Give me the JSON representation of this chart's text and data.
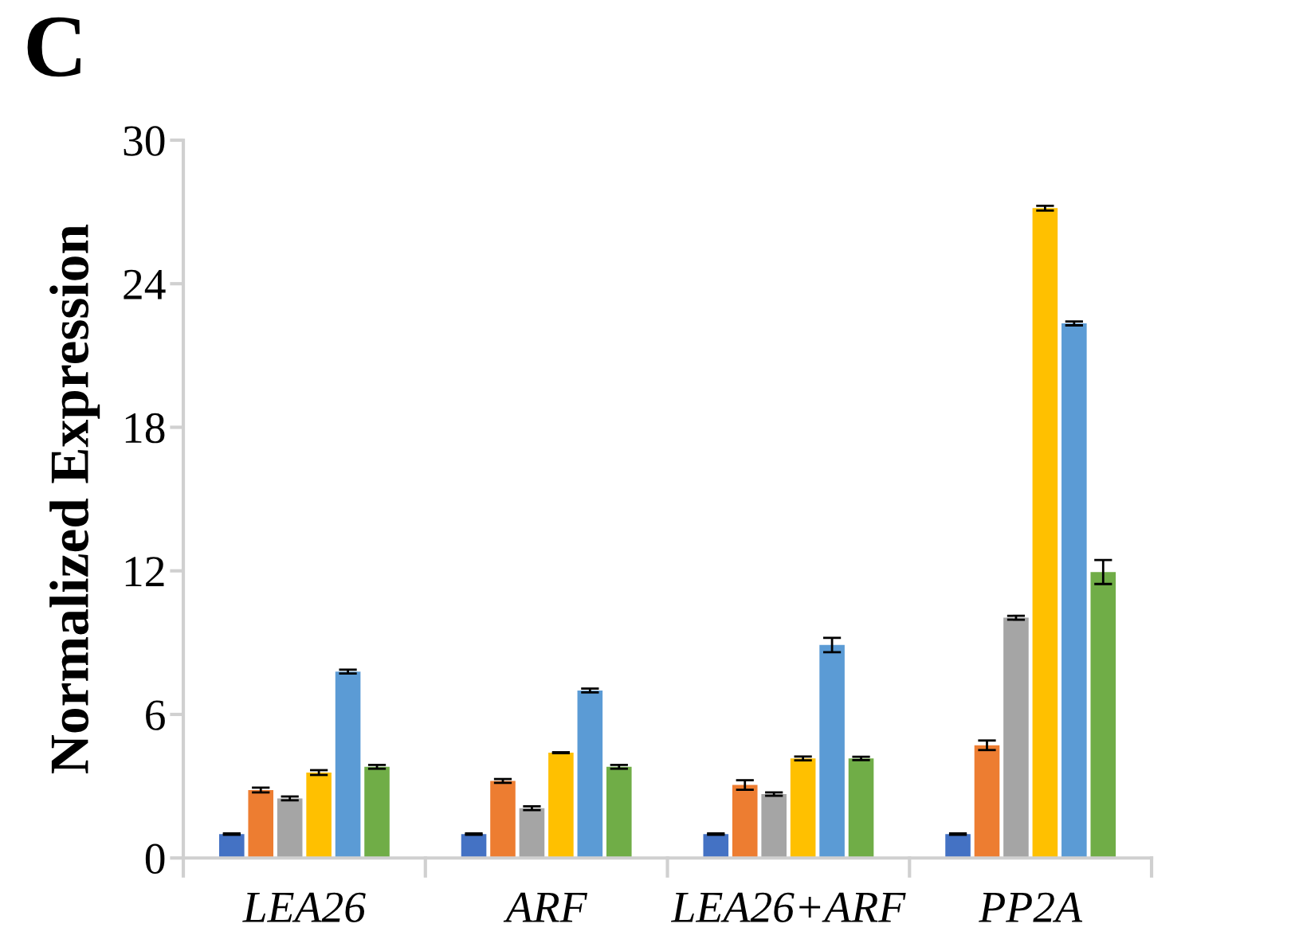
{
  "chart_data": {
    "type": "bar",
    "ylabel": "Normalized Expression",
    "annotations": [
      "C"
    ],
    "categories": [
      "LEA26",
      "ARF",
      "LEA26+ARF",
      "PP2A"
    ],
    "ylim": [
      0,
      30
    ],
    "yticks": [
      0,
      6,
      12,
      18,
      24,
      30
    ],
    "grid": false,
    "legend": false,
    "series": [
      {
        "color": "#4472c4",
        "values": [
          1,
          1,
          1,
          1
        ],
        "errors": [
          0.03,
          0.03,
          0.03,
          0.03
        ]
      },
      {
        "color": "#ed7d31",
        "values": [
          2.84,
          3.22,
          3.05,
          4.71
        ],
        "errors": [
          0.1,
          0.08,
          0.2,
          0.2
        ]
      },
      {
        "color": "#a5a5a5",
        "values": [
          2.49,
          2.08,
          2.67,
          10.04
        ],
        "errors": [
          0.08,
          0.08,
          0.07,
          0.08
        ]
      },
      {
        "color": "#ffc000",
        "values": [
          3.57,
          4.4,
          4.16,
          27.16
        ],
        "errors": [
          0.1,
          0.02,
          0.08,
          0.1
        ]
      },
      {
        "color": "#5b9bd5",
        "values": [
          7.79,
          7.0,
          8.9,
          22.34
        ],
        "errors": [
          0.08,
          0.08,
          0.3,
          0.08
        ]
      },
      {
        "color": "#70ad47",
        "values": [
          3.81,
          3.81,
          4.16,
          11.95
        ],
        "errors": [
          0.08,
          0.08,
          0.07,
          0.5
        ]
      }
    ]
  }
}
